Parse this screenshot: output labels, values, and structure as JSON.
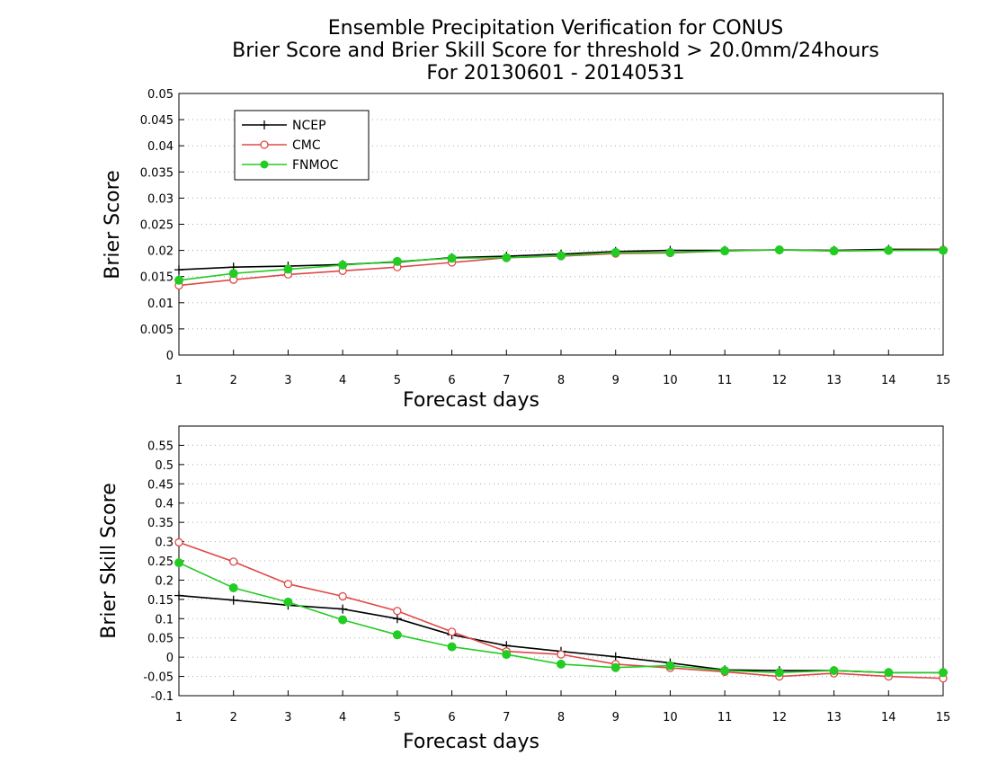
{
  "title": {
    "line1": "Ensemble Precipitation Verification for CONUS",
    "line2": "Brier Score and Brier Skill Score for threshold > 20.0mm/24hours",
    "line3": "For 20130601 - 20140531"
  },
  "colors": {
    "NCEP": "#000000",
    "CMC": "#e04848",
    "FNMOC": "#22cc22",
    "grid": "#aaaaaa"
  },
  "chart_data": [
    {
      "type": "line",
      "ylabel": "Brier Score",
      "xlabel": "Forecast days",
      "xlim": [
        1,
        15
      ],
      "ylim": [
        0,
        0.05
      ],
      "x": [
        1,
        2,
        3,
        4,
        5,
        6,
        7,
        8,
        9,
        10,
        11,
        12,
        13,
        14,
        15
      ],
      "yticks": [
        "0",
        "0.005",
        "0.01",
        "0.015",
        "0.02",
        "0.025",
        "0.03",
        "0.035",
        "0.04",
        "0.045",
        "0.05"
      ],
      "ytick_values": [
        0,
        0.005,
        0.01,
        0.015,
        0.02,
        0.025,
        0.03,
        0.035,
        0.04,
        0.045,
        0.05
      ],
      "xticks": [
        "1",
        "2",
        "3",
        "4",
        "5",
        "6",
        "7",
        "8",
        "9",
        "10",
        "11",
        "12",
        "13",
        "14",
        "15"
      ],
      "grid": true,
      "legend": {
        "placement": "top-left",
        "entries": [
          "NCEP",
          "CMC",
          "FNMOC"
        ]
      },
      "series": [
        {
          "name": "NCEP",
          "marker": "plus",
          "values": [
            0.0163,
            0.0168,
            0.017,
            0.0173,
            0.0178,
            0.0186,
            0.0189,
            0.0193,
            0.0198,
            0.02,
            0.02,
            0.0201,
            0.02,
            0.0202,
            0.0202
          ]
        },
        {
          "name": "CMC",
          "marker": "open-circle",
          "values": [
            0.0133,
            0.0144,
            0.0154,
            0.0161,
            0.0168,
            0.0177,
            0.0186,
            0.0189,
            0.0194,
            0.0195,
            0.0199,
            0.0201,
            0.0199,
            0.02,
            0.0201
          ]
        },
        {
          "name": "FNMOC",
          "marker": "filled-circle",
          "values": [
            0.0143,
            0.0156,
            0.0164,
            0.0172,
            0.0179,
            0.0185,
            0.0186,
            0.019,
            0.0196,
            0.0196,
            0.0199,
            0.0201,
            0.0199,
            0.02,
            0.02
          ]
        }
      ]
    },
    {
      "type": "line",
      "ylabel": "Brier Skill Score",
      "xlabel": "Forecast days",
      "xlim": [
        1,
        15
      ],
      "ylim": [
        -0.1,
        0.6
      ],
      "x": [
        1,
        2,
        3,
        4,
        5,
        6,
        7,
        8,
        9,
        10,
        11,
        12,
        13,
        14,
        15
      ],
      "yticks": [
        "-0.1",
        "-0.05",
        "0",
        "0.05",
        "0.1",
        "0.15",
        "0.2",
        "0.25",
        "0.3",
        "0.35",
        "0.4",
        "0.45",
        "0.5",
        "0.55"
      ],
      "ytick_values": [
        -0.1,
        -0.05,
        0,
        0.05,
        0.1,
        0.15,
        0.2,
        0.25,
        0.3,
        0.35,
        0.4,
        0.45,
        0.5,
        0.55
      ],
      "xticks": [
        "1",
        "2",
        "3",
        "4",
        "5",
        "6",
        "7",
        "8",
        "9",
        "10",
        "11",
        "12",
        "13",
        "14",
        "15"
      ],
      "grid": true,
      "series": [
        {
          "name": "NCEP",
          "marker": "plus",
          "values": [
            0.16,
            0.148,
            0.135,
            0.125,
            0.1,
            0.058,
            0.03,
            0.015,
            0.001,
            -0.015,
            -0.033,
            -0.035,
            -0.035,
            -0.04,
            -0.04
          ]
        },
        {
          "name": "CMC",
          "marker": "open-circle",
          "values": [
            0.298,
            0.248,
            0.19,
            0.158,
            0.12,
            0.066,
            0.015,
            0.007,
            -0.018,
            -0.028,
            -0.038,
            -0.05,
            -0.042,
            -0.05,
            -0.055
          ]
        },
        {
          "name": "FNMOC",
          "marker": "filled-circle",
          "values": [
            0.245,
            0.18,
            0.143,
            0.097,
            0.058,
            0.027,
            0.007,
            -0.018,
            -0.027,
            -0.022,
            -0.035,
            -0.04,
            -0.035,
            -0.04,
            -0.04
          ]
        }
      ]
    }
  ]
}
